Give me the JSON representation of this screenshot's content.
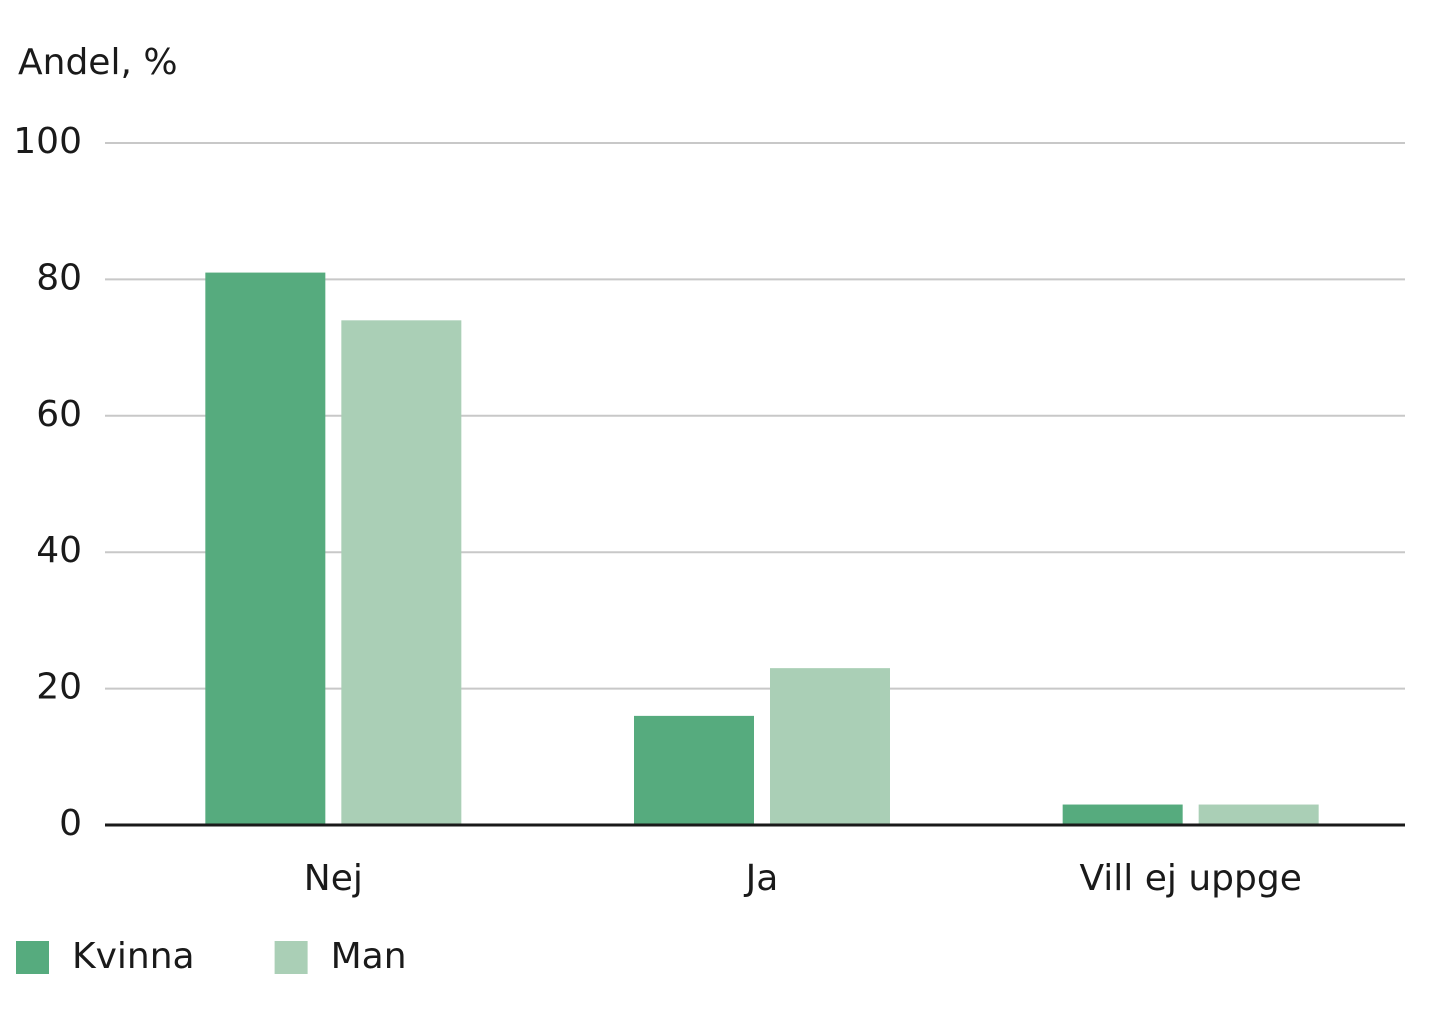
{
  "chart_data": {
    "type": "bar",
    "y_label": "Andel, %",
    "categories": [
      "Nej",
      "Ja",
      "Vill ej uppge"
    ],
    "series": [
      {
        "name": "Kvinna",
        "color": "#56ab7e",
        "values": [
          81,
          16,
          3
        ]
      },
      {
        "name": "Man",
        "color": "#aacfb6",
        "values": [
          74,
          23,
          3
        ]
      }
    ],
    "ylim": [
      0,
      100
    ],
    "yticks": [
      0,
      20,
      40,
      60,
      80,
      100
    ],
    "grid": true
  }
}
